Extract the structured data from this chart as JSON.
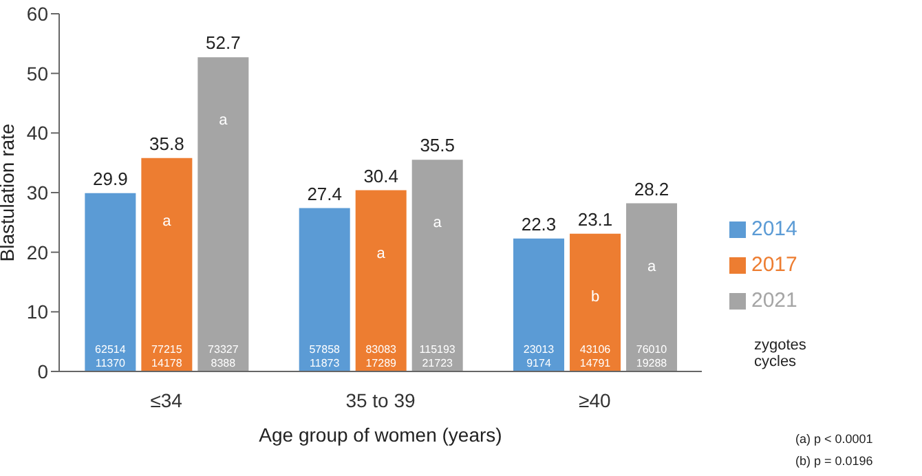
{
  "chart_data": {
    "type": "bar",
    "xlabel": "Age group of women (years)",
    "ylabel": "Blastulation rate",
    "categories": [
      "≤34",
      "35 to 39",
      "≥40"
    ],
    "series": [
      {
        "name": "2014",
        "color": "#5b9bd5",
        "values": [
          29.9,
          27.4,
          22.3
        ]
      },
      {
        "name": "2017",
        "color": "#ed7d31",
        "values": [
          35.8,
          30.4,
          23.1
        ]
      },
      {
        "name": "2021",
        "color": "#a5a5a5",
        "values": [
          52.7,
          35.5,
          28.2
        ]
      }
    ],
    "ylim": [
      0,
      60
    ],
    "yticks": [
      0,
      10,
      20,
      30,
      40,
      50,
      60
    ],
    "grid": false,
    "legend": "right",
    "data_labels": true,
    "annotations": [
      "zygotes",
      "cycles",
      "(a) p < 0.0001",
      "(b) p = 0.0196",
      "a",
      "a",
      "a",
      "a",
      "b",
      "a",
      "62514",
      "11370",
      "77215",
      "14178",
      "73327",
      "8388",
      "57858",
      "11873",
      "83083",
      "17289",
      "115193",
      "21723",
      "23013",
      "9174",
      "43106",
      "14791",
      "76010",
      "19288"
    ]
  }
}
